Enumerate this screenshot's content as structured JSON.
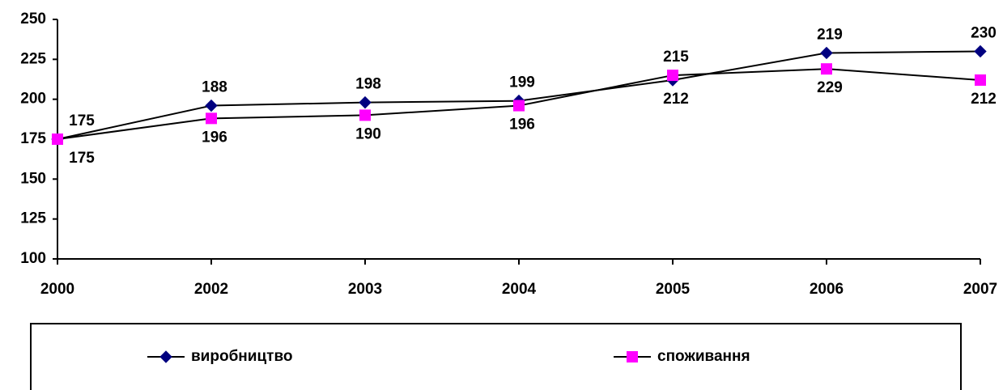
{
  "chart_data": {
    "type": "line",
    "categories": [
      "2000",
      "2002",
      "2003",
      "2004",
      "2005",
      "2006",
      "2007"
    ],
    "series": [
      {
        "name": "виробництво",
        "color": "#000080",
        "marker": "diamond",
        "values": [
          175,
          196,
          198,
          199,
          212,
          229,
          230
        ]
      },
      {
        "name": "споживання",
        "color": "#ff00ff",
        "marker": "square",
        "values": [
          175,
          188,
          190,
          196,
          215,
          219,
          212
        ]
      }
    ],
    "ylim": [
      100,
      250
    ],
    "yticks": [
      100,
      125,
      150,
      175,
      200,
      225,
      250
    ],
    "grid": false,
    "legend": "bottom"
  }
}
